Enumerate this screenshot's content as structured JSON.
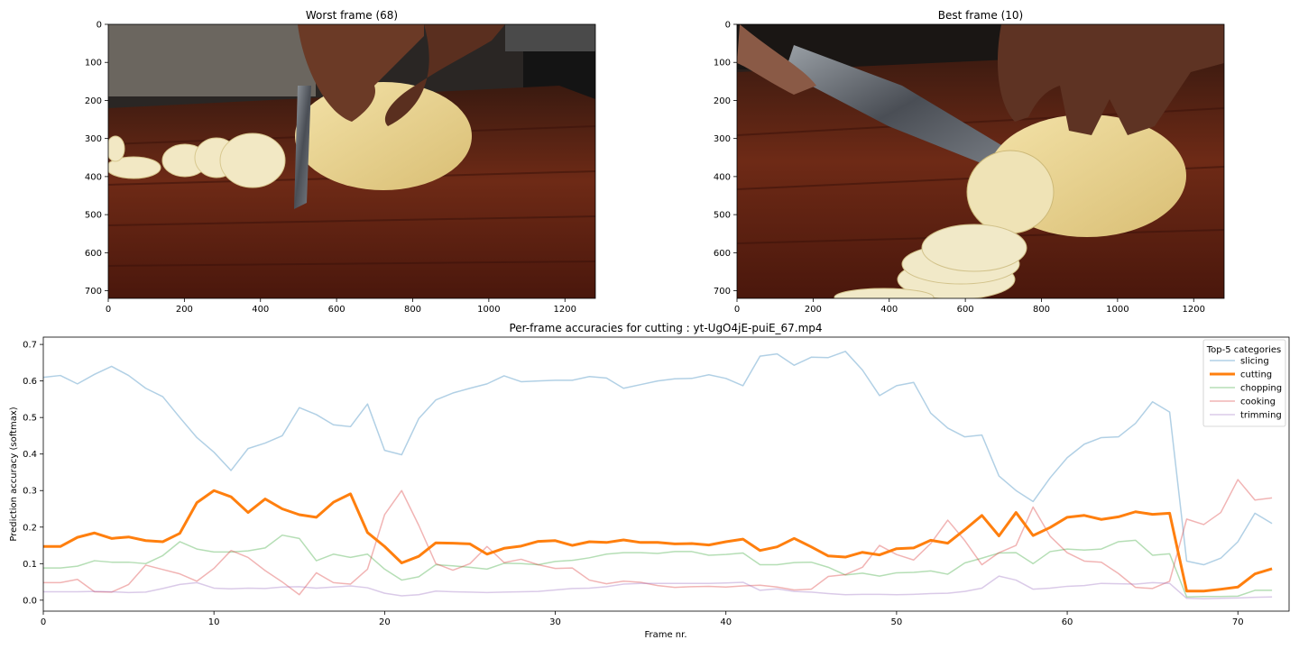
{
  "figure": {
    "top_left_title": "Worst frame (68)",
    "top_right_title": "Best frame (10)",
    "image_x_ticks": [
      "0",
      "200",
      "400",
      "600",
      "800",
      "1000",
      "1200"
    ],
    "image_y_ticks": [
      "0",
      "100",
      "200",
      "300",
      "400",
      "500",
      "600",
      "700"
    ]
  },
  "chart_data": {
    "type": "line",
    "title": "Per-frame accuracies for cutting : yt-UgO4jE-puiE_67.mp4",
    "xlabel": "Frame nr.",
    "ylabel": "Prediction accuracy (softmax)",
    "xlim": [
      0,
      73
    ],
    "ylim": [
      -0.03,
      0.72
    ],
    "x_ticks": [
      0,
      10,
      20,
      30,
      40,
      50,
      60,
      70
    ],
    "y_ticks": [
      0.0,
      0.1,
      0.2,
      0.3,
      0.4,
      0.5,
      0.6,
      0.7
    ],
    "legend_title": "Top-5 categories",
    "legend_position": "top-right",
    "series": [
      {
        "name": "slicing",
        "color": "#1f77b4",
        "emphasized": false,
        "values": [
          0.61,
          0.615,
          0.592,
          0.618,
          0.64,
          0.615,
          0.58,
          0.557,
          0.5,
          0.445,
          0.405,
          0.355,
          0.415,
          0.43,
          0.45,
          0.527,
          0.508,
          0.48,
          0.475,
          0.537,
          0.41,
          0.398,
          0.497,
          0.548,
          0.567,
          0.58,
          0.592,
          0.614,
          0.598,
          0.6,
          0.602,
          0.602,
          0.612,
          0.608,
          0.58,
          0.59,
          0.6,
          0.606,
          0.607,
          0.617,
          0.607,
          0.587,
          0.668,
          0.674,
          0.643,
          0.665,
          0.664,
          0.681,
          0.63,
          0.56,
          0.587,
          0.596,
          0.512,
          0.471,
          0.447,
          0.452,
          0.34,
          0.3,
          0.27,
          0.335,
          0.39,
          0.427,
          0.445,
          0.447,
          0.484,
          0.543,
          0.515,
          0.107,
          0.097,
          0.115,
          0.16,
          0.238,
          0.21
        ]
      },
      {
        "name": "cutting",
        "color": "#ff7f0e",
        "emphasized": true,
        "values": [
          0.147,
          0.147,
          0.172,
          0.184,
          0.169,
          0.173,
          0.163,
          0.16,
          0.183,
          0.267,
          0.3,
          0.283,
          0.24,
          0.277,
          0.25,
          0.234,
          0.227,
          0.268,
          0.291,
          0.185,
          0.147,
          0.102,
          0.12,
          0.157,
          0.156,
          0.154,
          0.126,
          0.142,
          0.148,
          0.161,
          0.163,
          0.15,
          0.16,
          0.158,
          0.165,
          0.158,
          0.158,
          0.154,
          0.155,
          0.151,
          0.16,
          0.167,
          0.136,
          0.146,
          0.169,
          0.146,
          0.121,
          0.118,
          0.131,
          0.124,
          0.141,
          0.143,
          0.164,
          0.156,
          0.193,
          0.232,
          0.176,
          0.24,
          0.177,
          0.199,
          0.227,
          0.232,
          0.221,
          0.228,
          0.242,
          0.235,
          0.238,
          0.025,
          0.025,
          0.03,
          0.036,
          0.072,
          0.086
        ]
      },
      {
        "name": "chopping",
        "color": "#2ca02c",
        "emphasized": false,
        "values": [
          0.088,
          0.088,
          0.093,
          0.108,
          0.104,
          0.104,
          0.1,
          0.122,
          0.16,
          0.14,
          0.132,
          0.132,
          0.135,
          0.143,
          0.178,
          0.169,
          0.108,
          0.126,
          0.117,
          0.126,
          0.085,
          0.055,
          0.064,
          0.097,
          0.094,
          0.09,
          0.085,
          0.101,
          0.1,
          0.097,
          0.106,
          0.109,
          0.116,
          0.126,
          0.13,
          0.13,
          0.128,
          0.133,
          0.133,
          0.123,
          0.125,
          0.129,
          0.097,
          0.097,
          0.103,
          0.104,
          0.09,
          0.069,
          0.074,
          0.066,
          0.075,
          0.076,
          0.08,
          0.071,
          0.102,
          0.115,
          0.129,
          0.13,
          0.1,
          0.133,
          0.14,
          0.137,
          0.14,
          0.16,
          0.164,
          0.123,
          0.127,
          0.009,
          0.01,
          0.01,
          0.011,
          0.027,
          0.027
        ]
      },
      {
        "name": "cooking",
        "color": "#d62728",
        "emphasized": false,
        "values": [
          0.048,
          0.048,
          0.057,
          0.023,
          0.022,
          0.043,
          0.096,
          0.084,
          0.072,
          0.052,
          0.087,
          0.136,
          0.117,
          0.081,
          0.05,
          0.015,
          0.075,
          0.048,
          0.044,
          0.085,
          0.234,
          0.3,
          0.205,
          0.1,
          0.082,
          0.1,
          0.147,
          0.103,
          0.112,
          0.097,
          0.087,
          0.088,
          0.055,
          0.045,
          0.052,
          0.049,
          0.04,
          0.035,
          0.037,
          0.038,
          0.036,
          0.039,
          0.041,
          0.036,
          0.028,
          0.03,
          0.065,
          0.07,
          0.09,
          0.15,
          0.125,
          0.11,
          0.155,
          0.219,
          0.163,
          0.097,
          0.13,
          0.15,
          0.255,
          0.175,
          0.13,
          0.107,
          0.104,
          0.073,
          0.035,
          0.032,
          0.052,
          0.222,
          0.207,
          0.24,
          0.33,
          0.274,
          0.28
        ]
      },
      {
        "name": "trimming",
        "color": "#9467bd",
        "emphasized": false,
        "values": [
          0.023,
          0.023,
          0.023,
          0.024,
          0.023,
          0.021,
          0.022,
          0.032,
          0.043,
          0.048,
          0.033,
          0.031,
          0.033,
          0.032,
          0.036,
          0.037,
          0.033,
          0.036,
          0.039,
          0.034,
          0.019,
          0.012,
          0.015,
          0.025,
          0.023,
          0.022,
          0.021,
          0.022,
          0.023,
          0.024,
          0.028,
          0.032,
          0.033,
          0.037,
          0.044,
          0.046,
          0.046,
          0.046,
          0.046,
          0.046,
          0.047,
          0.049,
          0.027,
          0.031,
          0.024,
          0.022,
          0.018,
          0.015,
          0.016,
          0.016,
          0.015,
          0.016,
          0.018,
          0.019,
          0.024,
          0.033,
          0.066,
          0.055,
          0.03,
          0.033,
          0.038,
          0.04,
          0.046,
          0.045,
          0.044,
          0.048,
          0.046,
          0.005,
          0.004,
          0.005,
          0.006,
          0.008,
          0.009
        ]
      }
    ]
  }
}
